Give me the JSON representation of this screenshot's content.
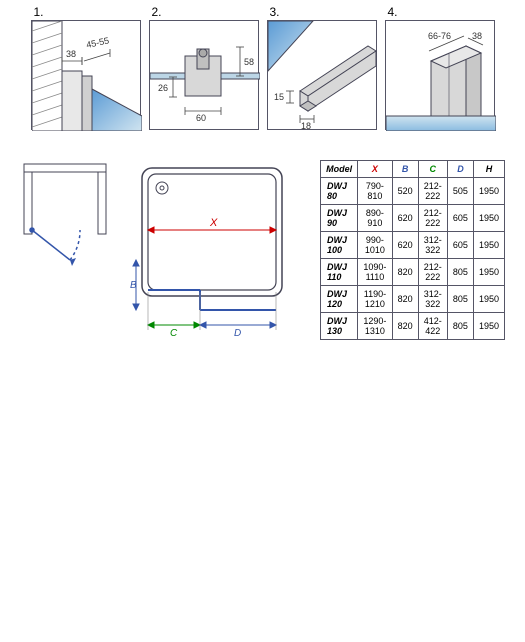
{
  "details": [
    {
      "label": "1.",
      "dims": {
        "d38": "38",
        "d45_55": "45-55"
      }
    },
    {
      "label": "2.",
      "dims": {
        "d58": "58",
        "d26": "26",
        "d60": "60"
      }
    },
    {
      "label": "3.",
      "dims": {
        "d15": "15",
        "d18": "18"
      }
    },
    {
      "label": "4.",
      "dims": {
        "d66_76": "66-76",
        "d38": "38"
      }
    }
  ],
  "plan_labels": {
    "X": "X",
    "B": "B",
    "C": "C",
    "D": "D"
  },
  "table": {
    "headers": {
      "model": "Model",
      "X": "X",
      "B": "B",
      "C": "C",
      "D": "D",
      "H": "H"
    },
    "header_colors": {
      "X": "#cc0000",
      "B": "#3355aa",
      "C": "#008800",
      "D": "#3355aa",
      "H": "#333"
    },
    "rows": [
      {
        "model": "DWJ 80",
        "X": "790-810",
        "B": "520",
        "C": "212-222",
        "D": "505",
        "H": "1950"
      },
      {
        "model": "DWJ 90",
        "X": "890-910",
        "B": "620",
        "C": "212-222",
        "D": "605",
        "H": "1950"
      },
      {
        "model": "DWJ 100",
        "X": "990-1010",
        "B": "620",
        "C": "312-322",
        "D": "605",
        "H": "1950"
      },
      {
        "model": "DWJ 110",
        "X": "1090-1110",
        "B": "820",
        "C": "212-222",
        "D": "805",
        "H": "1950"
      },
      {
        "model": "DWJ 120",
        "X": "1190-1210",
        "B": "820",
        "C": "312-322",
        "D": "805",
        "H": "1950"
      },
      {
        "model": "DWJ 130",
        "X": "1290-1310",
        "B": "820",
        "C": "412-422",
        "D": "805",
        "H": "1950"
      }
    ]
  },
  "style": {
    "stroke": "#444455",
    "glass_fill": "#bcd6e6",
    "glass_grad_a": "#5b9bd5",
    "glass_grad_b": "#d0e4f0",
    "dim_stroke": "#444",
    "text_color": "#333",
    "red": "#cc0000",
    "blue": "#3355aa",
    "green": "#008800"
  }
}
